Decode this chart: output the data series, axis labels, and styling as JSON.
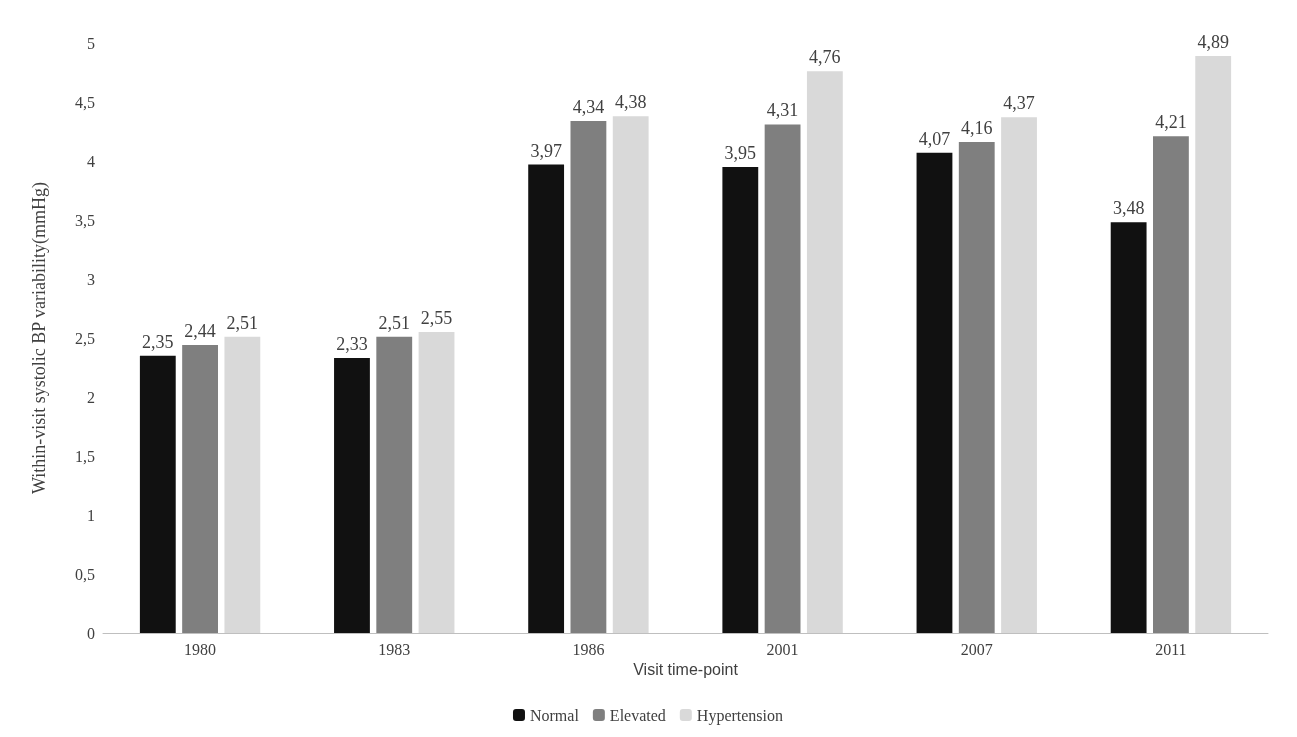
{
  "chart_data": {
    "type": "bar",
    "xlabel": "Visit time-point",
    "ylabel": "Within-visit systolic BP variability(mmHg)",
    "categories": [
      "1980",
      "1983",
      "1986",
      "2001",
      "2007",
      "2011"
    ],
    "series": [
      {
        "name": "Normal",
        "color": "#111111",
        "values": [
          2.35,
          2.33,
          3.97,
          3.95,
          4.07,
          3.48
        ],
        "value_labels": [
          "2,35",
          "2,33",
          "3,97",
          "3,95",
          "4,07",
          "3,48"
        ]
      },
      {
        "name": "Elevated",
        "color": "#7f7f7f",
        "values": [
          2.44,
          2.51,
          4.34,
          4.31,
          4.16,
          4.21
        ],
        "value_labels": [
          "2,44",
          "2,51",
          "4,34",
          "4,31",
          "4,16",
          "4,21"
        ]
      },
      {
        "name": "Hypertension",
        "color": "#d9d9d9",
        "values": [
          2.51,
          2.55,
          4.38,
          4.76,
          4.37,
          4.89
        ],
        "value_labels": [
          "2,51",
          "2,55",
          "4,38",
          "4,76",
          "4,37",
          "4,89"
        ]
      }
    ],
    "ylim": [
      0,
      5
    ],
    "yticks": [
      0,
      {
        "value": 0.5,
        "label": "0,5"
      },
      1,
      {
        "value": 1.5,
        "label": "1,5"
      },
      2,
      {
        "value": 2.5,
        "label": "2,5"
      },
      3,
      {
        "value": 3.5,
        "label": "3,5"
      },
      4,
      {
        "value": 4.5,
        "label": "4,5"
      },
      5
    ],
    "grid": false,
    "legend": "bottom"
  }
}
